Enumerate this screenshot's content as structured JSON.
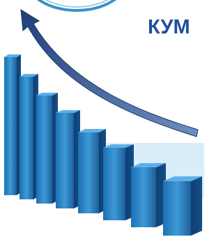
{
  "header": {
    "title": "КУМ"
  }
}
